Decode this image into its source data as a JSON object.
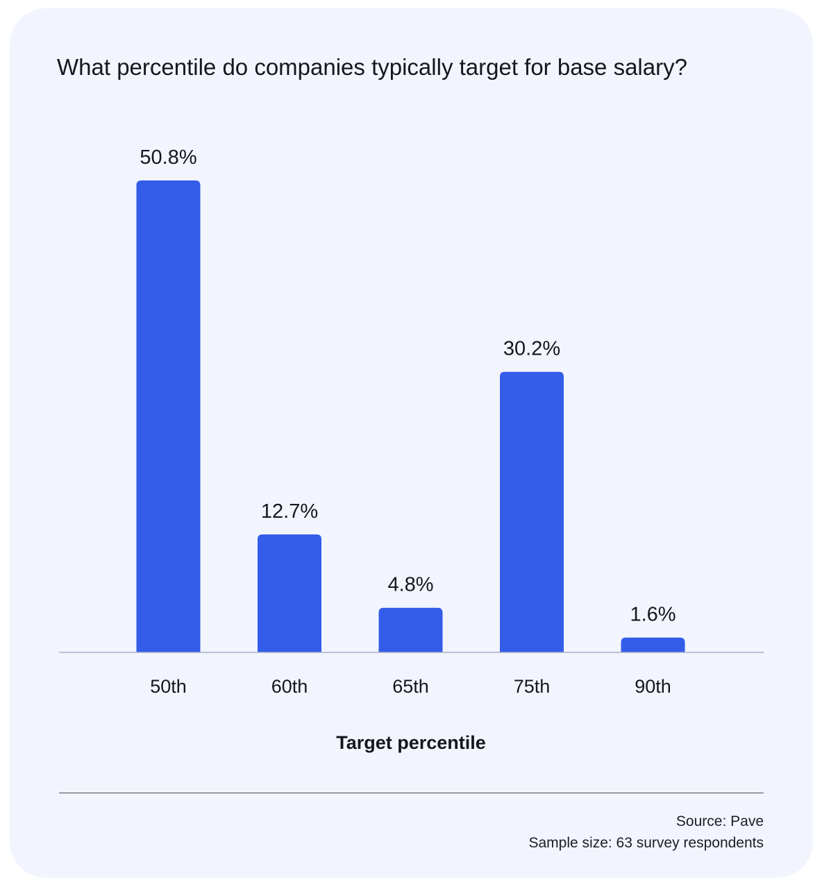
{
  "chart_data": {
    "type": "bar",
    "title": "What percentile do companies typically target for base salary?",
    "xlabel": "Target percentile",
    "ylabel": "",
    "categories": [
      "50th",
      "60th",
      "65th",
      "75th",
      "90th"
    ],
    "values": [
      50.8,
      12.7,
      4.8,
      30.2,
      1.6
    ],
    "value_labels": [
      "50.8%",
      "12.7%",
      "4.8%",
      "30.2%",
      "1.6%"
    ],
    "ylim": [
      0,
      50.8
    ],
    "grid": false,
    "legend": "none",
    "bar_color": "#335ce8",
    "axis_color": "#a9b0c6"
  },
  "footer": {
    "source": "Source: Pave",
    "sample": "Sample size: 63 survey respondents"
  }
}
